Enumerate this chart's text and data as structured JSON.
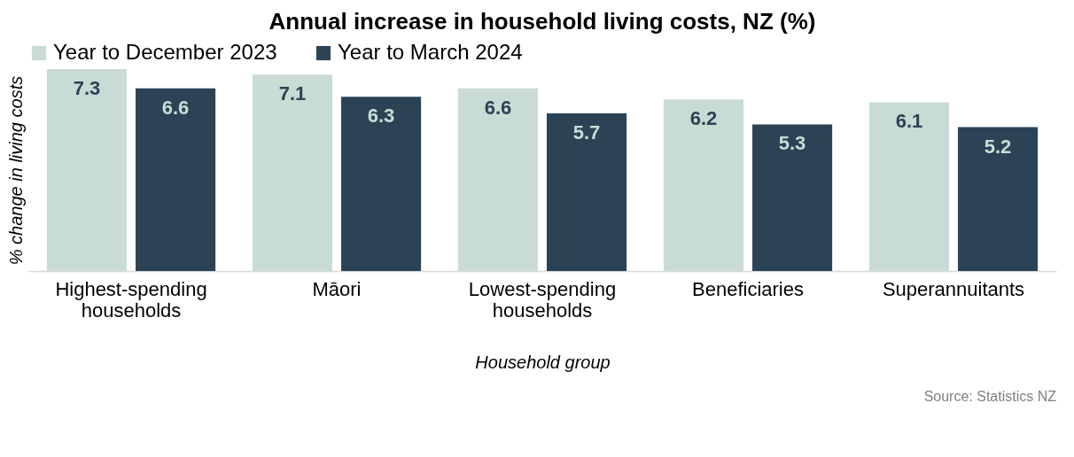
{
  "chart_data": {
    "type": "bar",
    "title": "Annual increase in household living costs, NZ (%)",
    "xlabel": "Household group",
    "ylabel": "% change in living costs",
    "categories": [
      "Highest-spending households",
      "Māori",
      "Lowest-spending households",
      "Beneficiaries",
      "Superannuitants"
    ],
    "series": [
      {
        "name": "Year to December 2023",
        "color": "#c9dbd5",
        "values": [
          7.3,
          7.1,
          6.6,
          6.2,
          6.1
        ]
      },
      {
        "name": "Year to March 2024",
        "color": "#2c4356",
        "values": [
          6.6,
          6.3,
          5.7,
          5.3,
          5.2
        ]
      }
    ],
    "ylim": [
      0,
      7.3
    ],
    "data_labels": true,
    "legend": "top",
    "grid": false,
    "annotations": [
      "Source: Statistics NZ"
    ]
  }
}
